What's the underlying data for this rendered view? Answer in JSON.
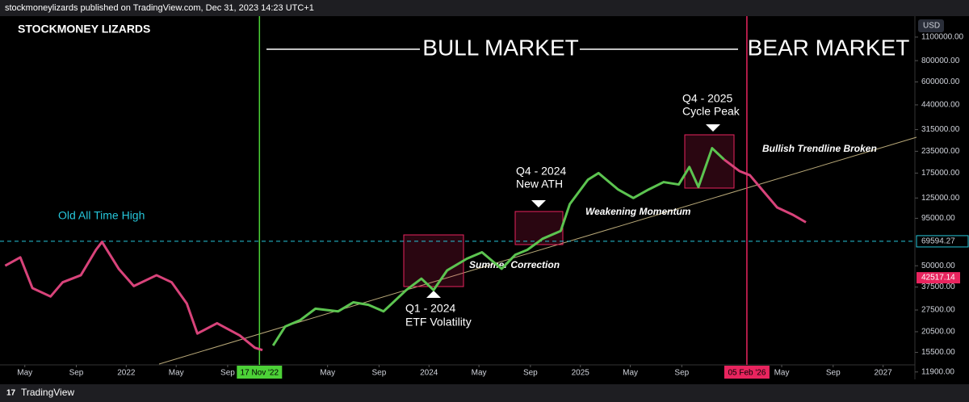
{
  "header": "stockmoneylizards published on TradingView.com, Dec 31, 2023 14:23 UTC+1",
  "footer_brand": "TradingView",
  "chart_data": {
    "type": "line",
    "title": "STOCKMONEY LIZARDS",
    "currency": "USD",
    "log_scale": true,
    "grid": false,
    "xlim": [
      2021.166,
      2027.21
    ],
    "ylim": [
      11000,
      1460000
    ],
    "yticks": [
      {
        "value": 11900,
        "label": "11900.00"
      },
      {
        "value": 15500,
        "label": "15500.00"
      },
      {
        "value": 20500,
        "label": "20500.00"
      },
      {
        "value": 27500,
        "label": "27500.00"
      },
      {
        "value": 37500,
        "label": "37500.00"
      },
      {
        "value": 50000,
        "label": "50000.00"
      },
      {
        "value": 95000,
        "label": "95000.00"
      },
      {
        "value": 125000,
        "label": "125000.00"
      },
      {
        "value": 175000,
        "label": "175000.00"
      },
      {
        "value": 235000,
        "label": "235000.00"
      },
      {
        "value": 315000,
        "label": "315000.00"
      },
      {
        "value": 440000,
        "label": "440000.00"
      },
      {
        "value": 600000,
        "label": "600000.00"
      },
      {
        "value": 800000,
        "label": "800000.00"
      },
      {
        "value": 1100000,
        "label": "1100000.00"
      }
    ],
    "xticks": [
      {
        "value": 2021.33,
        "label": "May"
      },
      {
        "value": 2021.67,
        "label": "Sep"
      },
      {
        "value": 2022,
        "label": "2022"
      },
      {
        "value": 2022.33,
        "label": "May"
      },
      {
        "value": 2022.67,
        "label": "Sep"
      },
      {
        "value": 2023.33,
        "label": "May"
      },
      {
        "value": 2023.67,
        "label": "Sep"
      },
      {
        "value": 2024,
        "label": "2024"
      },
      {
        "value": 2024.33,
        "label": "May"
      },
      {
        "value": 2024.67,
        "label": "Sep"
      },
      {
        "value": 2025,
        "label": "2025"
      },
      {
        "value": 2025.33,
        "label": "May"
      },
      {
        "value": 2025.67,
        "label": "Sep"
      },
      {
        "value": 2026.33,
        "label": "May"
      },
      {
        "value": 2026.67,
        "label": "Sep"
      },
      {
        "value": 2027,
        "label": "2027"
      }
    ],
    "series": [
      {
        "color": "#d8437a",
        "x": [
          2021.2,
          2021.3,
          2021.38,
          2021.5,
          2021.58,
          2021.7,
          2021.8,
          2021.84,
          2021.95,
          2022.05,
          2022.2,
          2022.3,
          2022.4,
          2022.47,
          2022.6,
          2022.75,
          2022.85,
          2022.9
        ],
        "values": [
          50000,
          56000,
          37000,
          33000,
          40000,
          44000,
          62000,
          69000,
          48000,
          38000,
          44000,
          40000,
          30000,
          20000,
          23000,
          19500,
          16500,
          16000
        ]
      },
      {
        "color": "#5cc450",
        "x": [
          2022.97,
          2023.05,
          2023.15,
          2023.25,
          2023.4,
          2023.5,
          2023.6,
          2023.7,
          2023.85,
          2023.95,
          2024.03,
          2024.12,
          2024.25,
          2024.35,
          2024.48,
          2024.57,
          2024.65,
          2024.75,
          2024.87,
          2024.93,
          2025.05,
          2025.12,
          2025.25,
          2025.35,
          2025.45,
          2025.55,
          2025.65,
          2025.72,
          2025.78,
          2025.87,
          2025.95
        ],
        "values": [
          17000,
          22000,
          24000,
          28000,
          27000,
          30500,
          29500,
          27000,
          36000,
          42000,
          36000,
          47000,
          55000,
          60000,
          48000,
          58000,
          62000,
          72000,
          80000,
          115000,
          160000,
          175000,
          140000,
          125000,
          140000,
          155000,
          150000,
          190000,
          145000,
          245000,
          210000
        ]
      },
      {
        "color": "#d8437a",
        "x": [
          2025.95,
          2026.05,
          2026.12,
          2026.2,
          2026.3,
          2026.4,
          2026.49
        ],
        "values": [
          210000,
          180000,
          170000,
          140000,
          110000,
          100000,
          90000
        ]
      }
    ],
    "markers": [
      {
        "x": 2022.88,
        "label": "17 Nov '22",
        "color": "#4cd137"
      },
      {
        "x": 2026.1,
        "label": "05 Feb '26",
        "color": "#e8245e"
      }
    ],
    "reference_line": {
      "value": 69594.27,
      "color": "#26c6da"
    },
    "last_price": {
      "value": 42517.14,
      "color": "#e8245e"
    },
    "annotations": [
      "BULL MARKET",
      "BEAR MARKET",
      "Old All Time High",
      "Q1 - 2024",
      "ETF Volatility",
      "Summer Correction",
      "Q4 - 2024",
      "New ATH",
      "Weakening Momentum",
      "Q4 - 2025",
      "Cycle Peak",
      "Bullish Trendline Broken"
    ]
  }
}
